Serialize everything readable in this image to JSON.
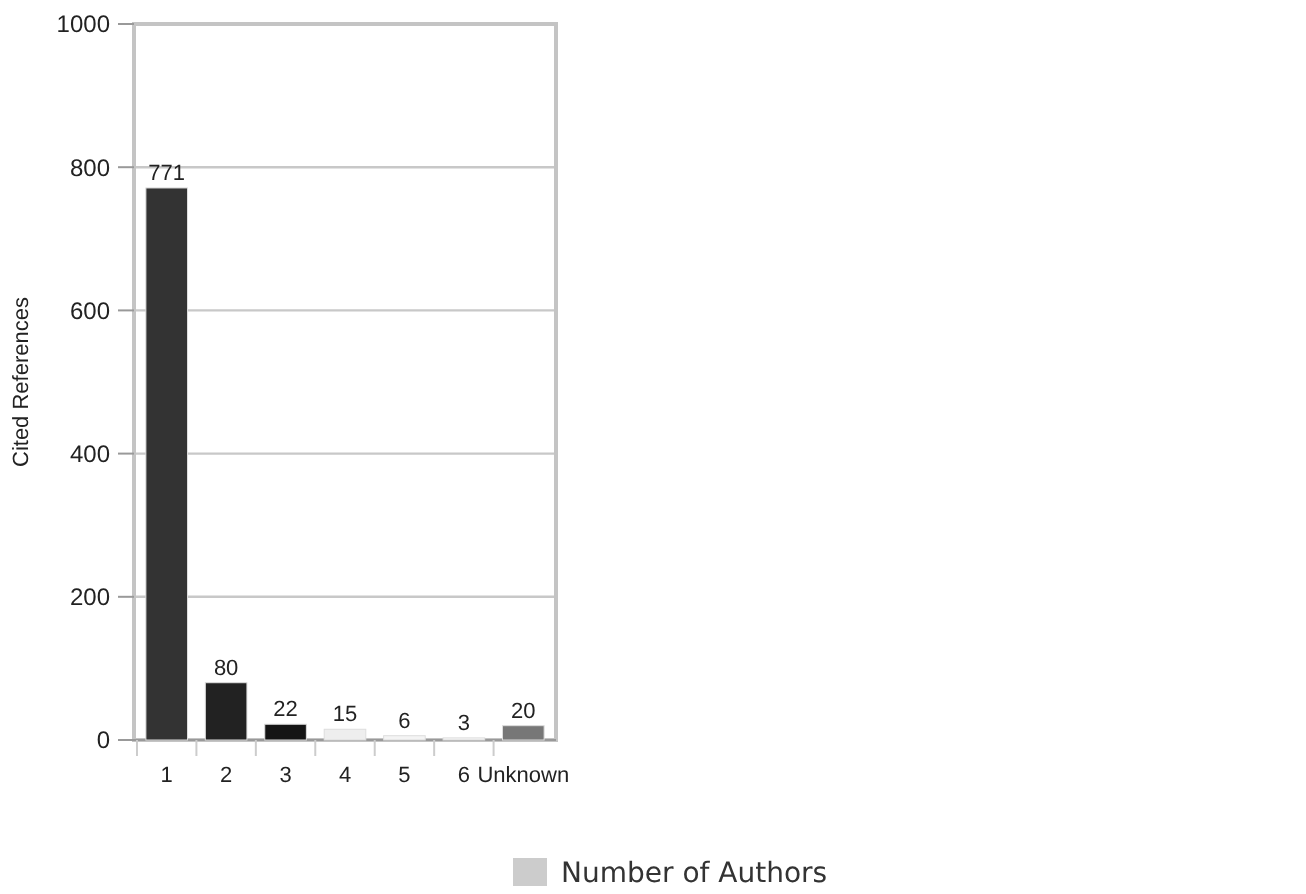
{
  "chart_data": {
    "type": "bar",
    "ylabel": "Cited References",
    "categories": [
      "1",
      "2",
      "3",
      "4",
      "5",
      "6",
      "Unknown"
    ],
    "xlabel": "Number of Authors",
    "series": [
      {
        "values": [
          771,
          80,
          22,
          15,
          6,
          3,
          20
        ]
      }
    ],
    "colors": [
      "#333333",
      "#222222",
      "#151515",
      "#eeeeee",
      "#f4f4f4",
      "#f4f4f4",
      "#777777"
    ],
    "ylim": [
      0,
      1000
    ],
    "yticks": [
      0,
      200,
      400,
      600,
      800,
      1000
    ],
    "grid": "y",
    "data_labels": true
  }
}
